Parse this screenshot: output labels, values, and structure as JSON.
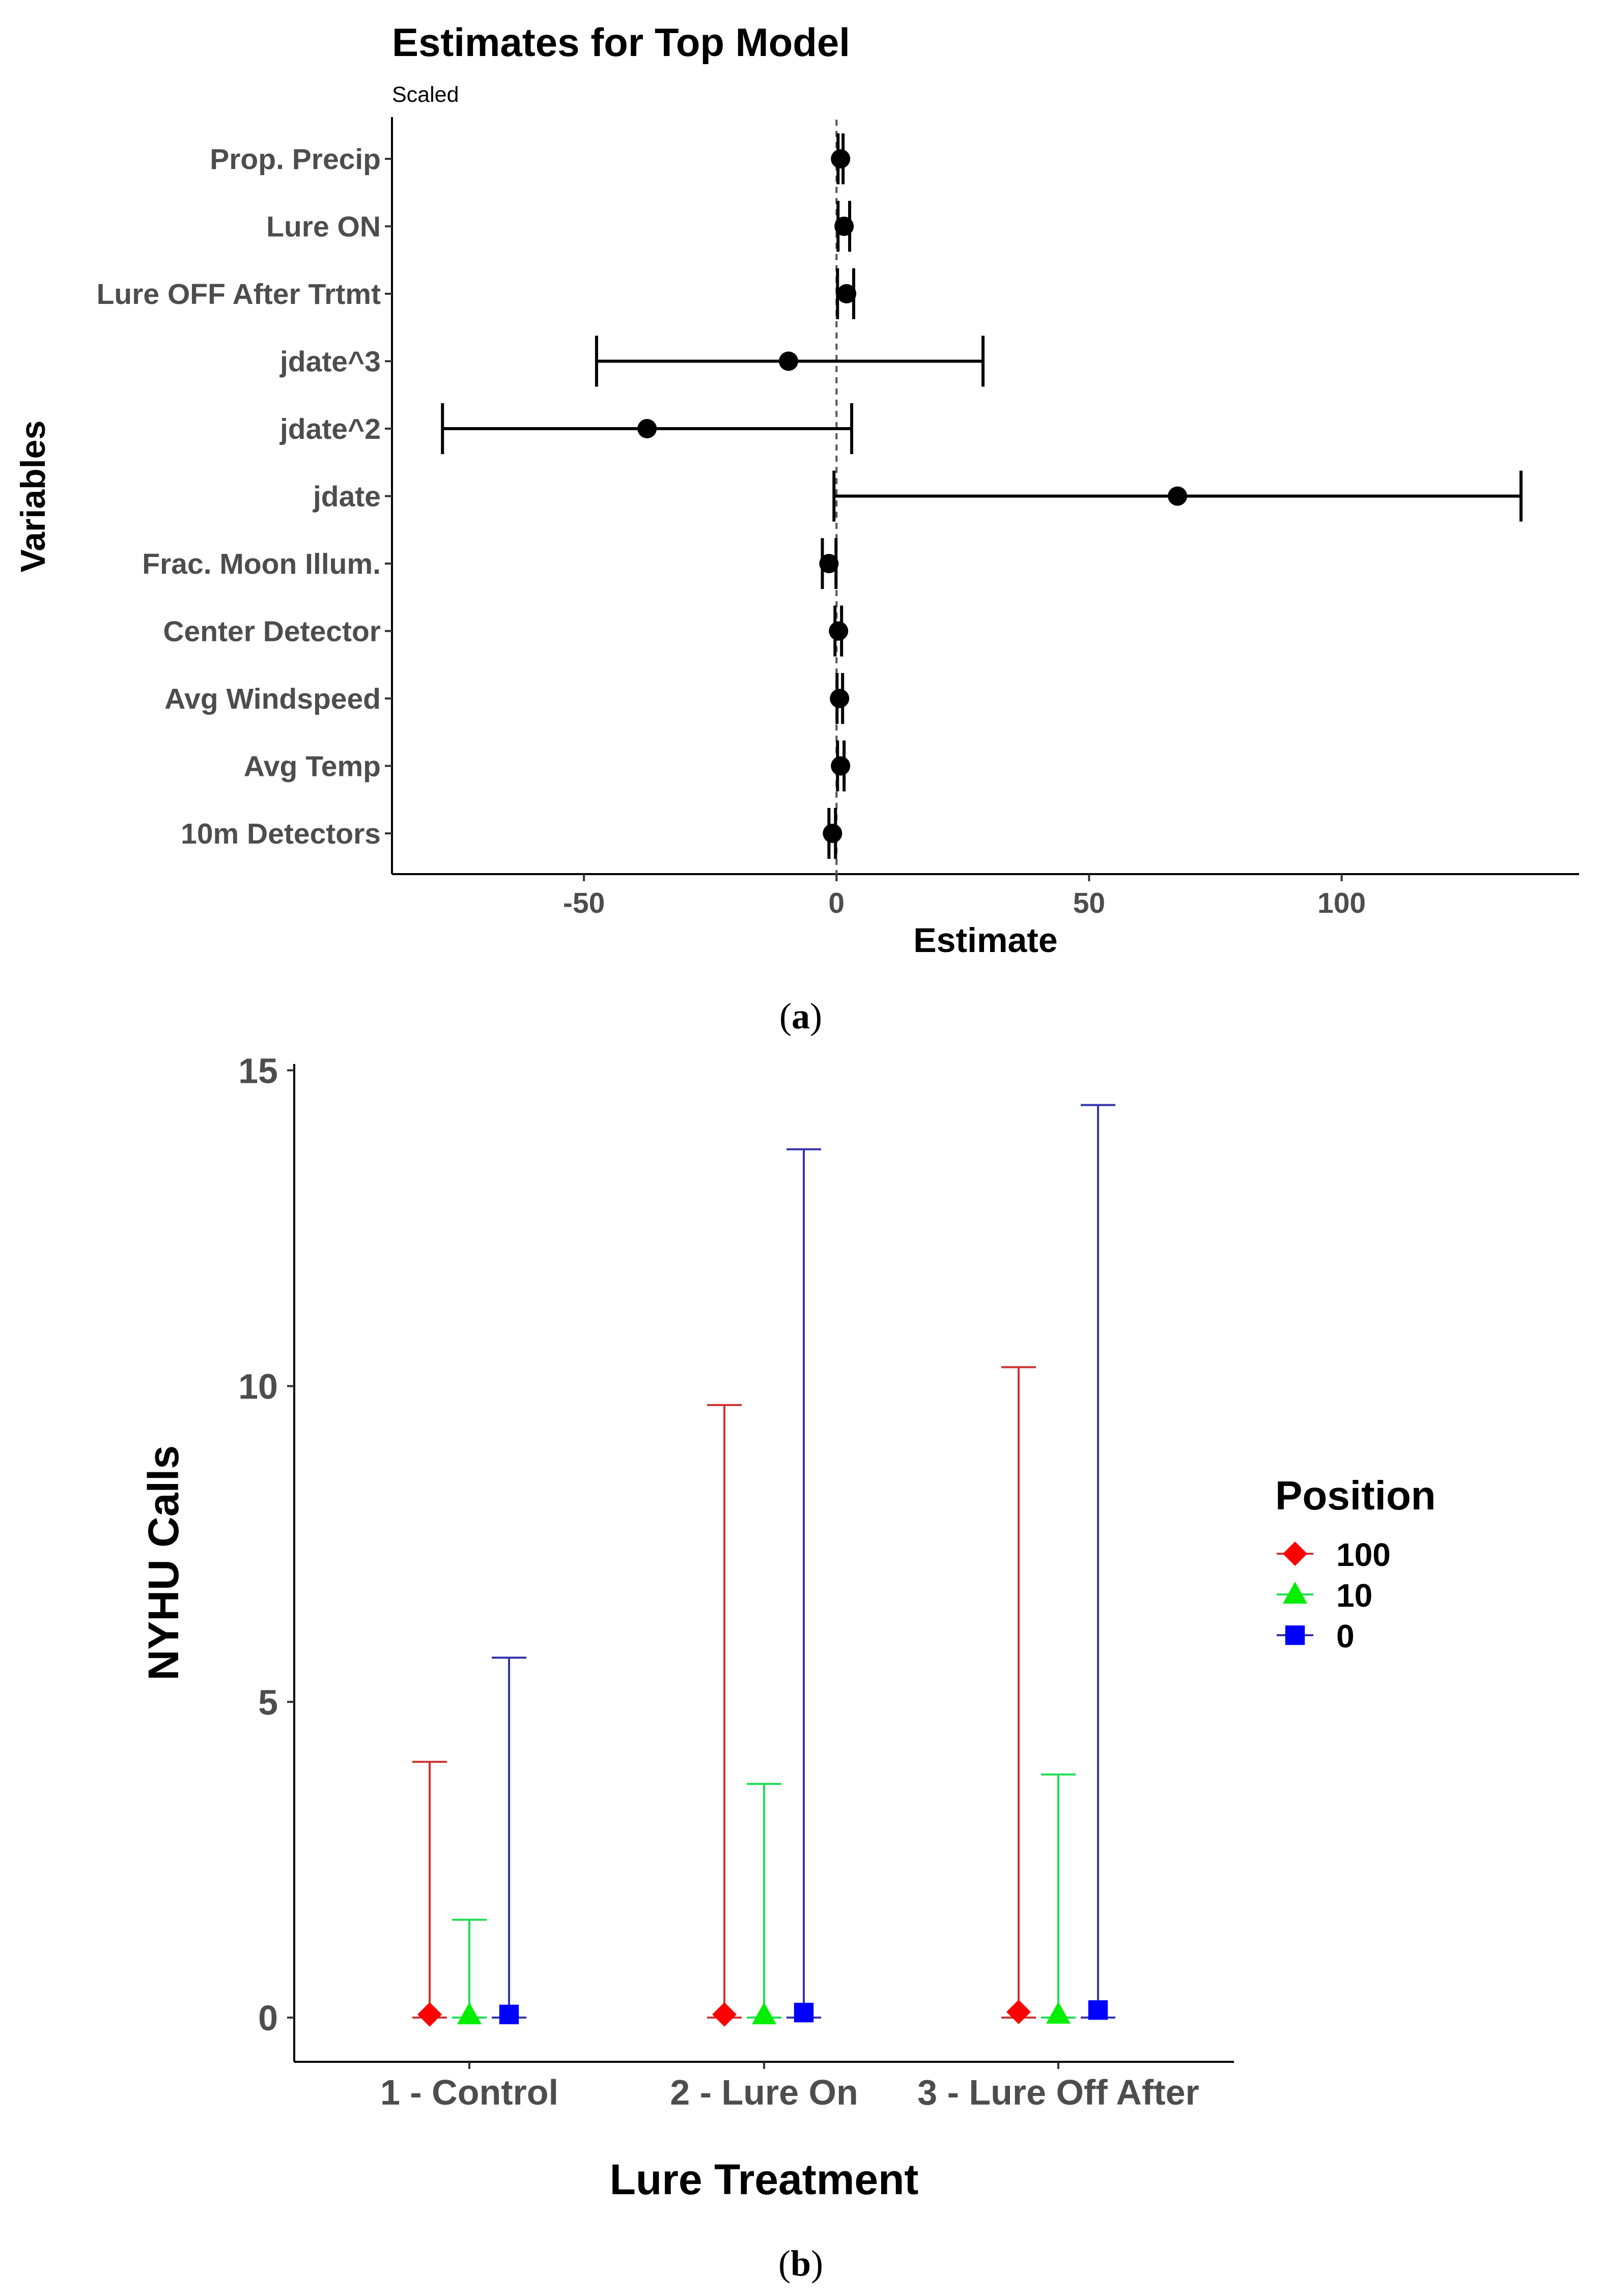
{
  "chart_data": [
    {
      "type": "forest",
      "title": "Estimates for Top Model",
      "subtitle": "Scaled",
      "xlabel": "Estimate",
      "ylabel": "Variables",
      "xlim": [
        -88,
        147
      ],
      "xticks": [
        -50,
        0,
        50,
        100
      ],
      "xtick_labels": [
        "-50",
        "0",
        "50",
        "100"
      ],
      "reference_line": 0,
      "caption": "a",
      "variables": [
        {
          "label": "Prop. Precip",
          "estimate": 0.8,
          "lower": 0.3,
          "upper": 1.3
        },
        {
          "label": "Lure ON",
          "estimate": 1.5,
          "lower": 0.3,
          "upper": 2.6
        },
        {
          "label": "Lure OFF After Trtmt",
          "estimate": 2.0,
          "lower": 0.2,
          "upper": 3.4
        },
        {
          "label": "jdate^3",
          "estimate": -9.5,
          "lower": -47.5,
          "upper": 29.0
        },
        {
          "label": "jdate^2",
          "estimate": -37.5,
          "lower": -78.0,
          "upper": 3.0
        },
        {
          "label": "jdate",
          "estimate": 67.5,
          "lower": -0.5,
          "upper": 135.5
        },
        {
          "label": "Frac. Moon Illum.",
          "estimate": -1.5,
          "lower": -2.8,
          "upper": -0.1
        },
        {
          "label": "Center Detector",
          "estimate": 0.4,
          "lower": -0.3,
          "upper": 1.0
        },
        {
          "label": "Avg Windspeed",
          "estimate": 0.6,
          "lower": 0.1,
          "upper": 1.2
        },
        {
          "label": "Avg Temp",
          "estimate": 0.8,
          "lower": 0.2,
          "upper": 1.5
        },
        {
          "label": "10m Detectors",
          "estimate": -0.8,
          "lower": -1.5,
          "upper": -0.2
        }
      ]
    },
    {
      "type": "errorbar",
      "xlabel": "Lure Treatment",
      "ylabel": "NYHU Calls",
      "ylim": [
        -0.7,
        15.1
      ],
      "yticks": [
        0,
        5,
        10,
        15
      ],
      "ytick_labels": [
        "0",
        "5",
        "10",
        "15"
      ],
      "categories": [
        "1 - Control",
        "2 - Lure On",
        "3 - Lure Off After"
      ],
      "legend_title": "Position",
      "caption": "b",
      "series": [
        {
          "name": "100",
          "color": "#ff0000",
          "line_color": "#cc3333",
          "marker": "diamond",
          "values": [
            0.05,
            0.05,
            0.09
          ],
          "lower": [
            0,
            0,
            0
          ],
          "upper": [
            4.05,
            9.7,
            10.3
          ]
        },
        {
          "name": "10",
          "color": "#00ee00",
          "line_color": "#22dd55",
          "marker": "triangle",
          "values": [
            0.04,
            0.04,
            0.05
          ],
          "lower": [
            0,
            0,
            0
          ],
          "upper": [
            1.55,
            3.7,
            3.85
          ]
        },
        {
          "name": "0",
          "color": "#0000ff",
          "line_color": "#3333aa",
          "marker": "square",
          "values": [
            0.05,
            0.08,
            0.12
          ],
          "lower": [
            0,
            0,
            0
          ],
          "upper": [
            5.7,
            13.75,
            14.45
          ]
        }
      ]
    }
  ]
}
